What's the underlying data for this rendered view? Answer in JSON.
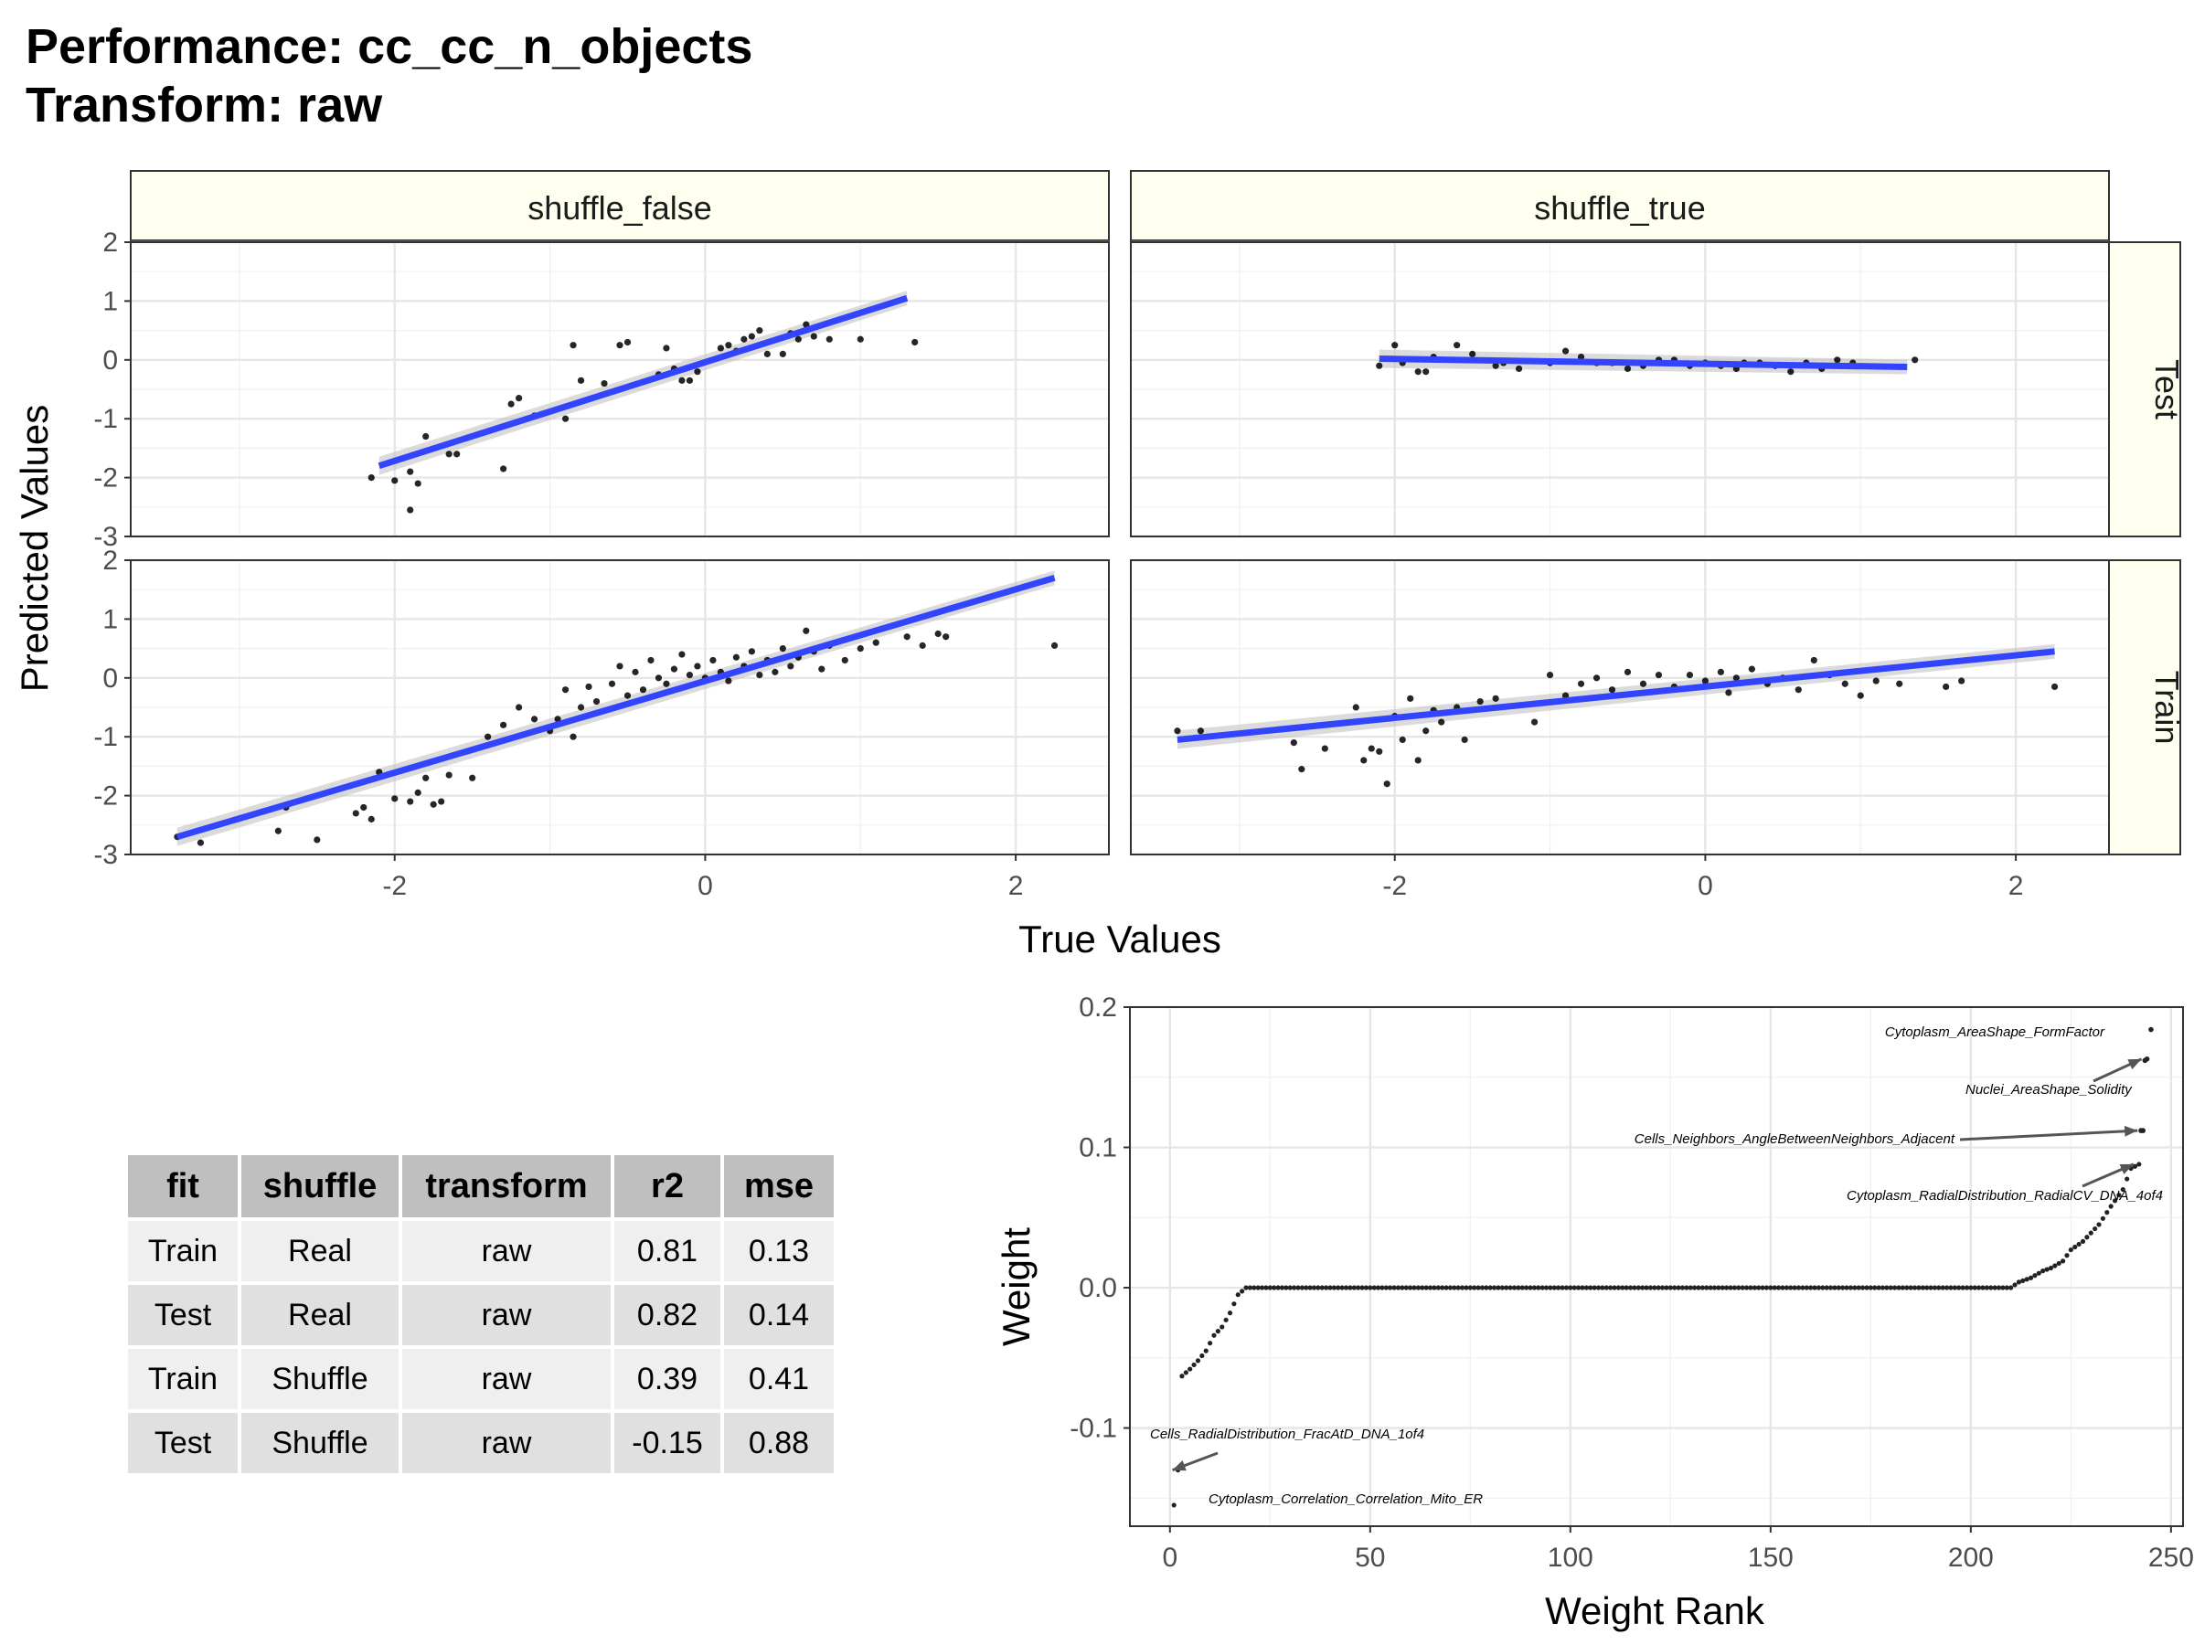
{
  "title": {
    "line1": "Performance: cc_cc_n_objects",
    "line2": "Transform: raw"
  },
  "scatter_axes": {
    "xlabel": "True Values",
    "ylabel": "Predicted Values",
    "x_ticks": [
      "-2",
      "0",
      "2"
    ],
    "y_ticks": [
      "-3",
      "-2",
      "-1",
      "0",
      "1",
      "2"
    ],
    "col_strips": [
      "shuffle_false",
      "shuffle_true"
    ],
    "row_strips": [
      "Test",
      "Train"
    ]
  },
  "weight_axes": {
    "xlabel": "Weight Rank",
    "ylabel": "Weight",
    "x_ticks": [
      "0",
      "50",
      "100",
      "150",
      "200",
      "250"
    ],
    "y_ticks": [
      "-0.1",
      "0.0",
      "0.1",
      "0.2"
    ]
  },
  "table": {
    "headers": [
      "fit",
      "shuffle",
      "transform",
      "r2",
      "mse"
    ],
    "rows": [
      [
        "Train",
        "Real",
        "raw",
        "0.81",
        "0.13"
      ],
      [
        "Test",
        "Real",
        "raw",
        "0.82",
        "0.14"
      ],
      [
        "Train",
        "Shuffle",
        "raw",
        "0.39",
        "0.41"
      ],
      [
        "Test",
        "Shuffle",
        "raw",
        "-0.15",
        "0.88"
      ]
    ]
  },
  "colors": {
    "fit_line": "#3344ff",
    "points": "#000000",
    "strip_fill": "#fffff0"
  },
  "chart_data": [
    {
      "type": "scatter",
      "panel": "shuffle_false / Test",
      "xlim": [
        -3.7,
        2.6
      ],
      "ylim": [
        -3,
        2
      ],
      "fit": {
        "x": [
          -2.1,
          1.3
        ],
        "y": [
          -1.8,
          1.05
        ]
      },
      "points": [
        [
          -2.15,
          -2.0
        ],
        [
          -2.0,
          -2.05
        ],
        [
          -1.9,
          -1.9
        ],
        [
          -1.9,
          -2.55
        ],
        [
          -1.85,
          -2.1
        ],
        [
          -1.8,
          -1.3
        ],
        [
          -1.65,
          -1.6
        ],
        [
          -1.6,
          -1.6
        ],
        [
          -1.3,
          -1.85
        ],
        [
          -1.25,
          -0.75
        ],
        [
          -1.2,
          -0.65
        ],
        [
          -1.1,
          -0.95
        ],
        [
          -0.9,
          -1.0
        ],
        [
          -0.85,
          0.25
        ],
        [
          -0.8,
          -0.35
        ],
        [
          -0.65,
          -0.4
        ],
        [
          -0.55,
          0.25
        ],
        [
          -0.5,
          0.3
        ],
        [
          -0.3,
          -0.25
        ],
        [
          -0.25,
          0.2
        ],
        [
          -0.2,
          -0.15
        ],
        [
          -0.15,
          -0.35
        ],
        [
          -0.1,
          -0.35
        ],
        [
          -0.05,
          -0.2
        ],
        [
          0.1,
          0.2
        ],
        [
          0.15,
          0.25
        ],
        [
          0.2,
          0.15
        ],
        [
          0.25,
          0.35
        ],
        [
          0.3,
          0.4
        ],
        [
          0.35,
          0.5
        ],
        [
          0.4,
          0.1
        ],
        [
          0.5,
          0.1
        ],
        [
          0.55,
          0.45
        ],
        [
          0.6,
          0.35
        ],
        [
          0.65,
          0.6
        ],
        [
          0.7,
          0.4
        ],
        [
          0.8,
          0.35
        ],
        [
          1.0,
          0.35
        ],
        [
          1.35,
          0.3
        ]
      ]
    },
    {
      "type": "scatter",
      "panel": "shuffle_true / Test",
      "xlim": [
        -3.7,
        2.6
      ],
      "ylim": [
        -3,
        2
      ],
      "fit": {
        "x": [
          -2.1,
          1.3
        ],
        "y": [
          0.02,
          -0.12
        ]
      },
      "points": [
        [
          -2.1,
          -0.1
        ],
        [
          -2.0,
          0.25
        ],
        [
          -1.95,
          -0.05
        ],
        [
          -1.85,
          -0.2
        ],
        [
          -1.8,
          -0.2
        ],
        [
          -1.75,
          0.05
        ],
        [
          -1.6,
          0.25
        ],
        [
          -1.5,
          0.1
        ],
        [
          -1.35,
          -0.1
        ],
        [
          -1.3,
          -0.05
        ],
        [
          -1.2,
          -0.15
        ],
        [
          -1.0,
          -0.05
        ],
        [
          -0.9,
          0.15
        ],
        [
          -0.8,
          0.05
        ],
        [
          -0.7,
          -0.05
        ],
        [
          -0.6,
          -0.05
        ],
        [
          -0.5,
          -0.15
        ],
        [
          -0.4,
          -0.1
        ],
        [
          -0.3,
          0.0
        ],
        [
          -0.2,
          0.0
        ],
        [
          -0.1,
          -0.1
        ],
        [
          0.0,
          -0.05
        ],
        [
          0.1,
          -0.1
        ],
        [
          0.2,
          -0.15
        ],
        [
          0.25,
          -0.05
        ],
        [
          0.35,
          -0.05
        ],
        [
          0.45,
          -0.1
        ],
        [
          0.55,
          -0.2
        ],
        [
          0.65,
          -0.05
        ],
        [
          0.75,
          -0.15
        ],
        [
          0.85,
          0.0
        ],
        [
          0.95,
          -0.05
        ],
        [
          1.35,
          0.0
        ]
      ]
    },
    {
      "type": "scatter",
      "panel": "shuffle_false / Train",
      "xlim": [
        -3.7,
        2.6
      ],
      "ylim": [
        -3,
        2
      ],
      "fit": {
        "x": [
          -3.4,
          2.25
        ],
        "y": [
          -2.7,
          1.7
        ]
      },
      "points": [
        [
          -3.4,
          -2.7
        ],
        [
          -3.25,
          -2.8
        ],
        [
          -2.75,
          -2.6
        ],
        [
          -2.7,
          -2.2
        ],
        [
          -2.5,
          -2.75
        ],
        [
          -2.25,
          -2.3
        ],
        [
          -2.2,
          -2.2
        ],
        [
          -2.15,
          -2.4
        ],
        [
          -2.1,
          -1.6
        ],
        [
          -2.0,
          -2.05
        ],
        [
          -1.9,
          -2.1
        ],
        [
          -1.85,
          -1.95
        ],
        [
          -1.8,
          -1.7
        ],
        [
          -1.75,
          -2.15
        ],
        [
          -1.7,
          -2.1
        ],
        [
          -1.65,
          -1.65
        ],
        [
          -1.5,
          -1.7
        ],
        [
          -1.4,
          -1.0
        ],
        [
          -1.3,
          -0.8
        ],
        [
          -1.2,
          -0.5
        ],
        [
          -1.1,
          -0.7
        ],
        [
          -1.0,
          -0.9
        ],
        [
          -0.95,
          -0.7
        ],
        [
          -0.9,
          -0.2
        ],
        [
          -0.85,
          -1.0
        ],
        [
          -0.8,
          -0.5
        ],
        [
          -0.75,
          -0.15
        ],
        [
          -0.7,
          -0.4
        ],
        [
          -0.6,
          -0.1
        ],
        [
          -0.55,
          0.2
        ],
        [
          -0.5,
          -0.3
        ],
        [
          -0.45,
          0.1
        ],
        [
          -0.4,
          -0.2
        ],
        [
          -0.35,
          0.3
        ],
        [
          -0.3,
          0.0
        ],
        [
          -0.25,
          -0.1
        ],
        [
          -0.2,
          0.15
        ],
        [
          -0.15,
          0.4
        ],
        [
          -0.1,
          0.05
        ],
        [
          -0.05,
          0.2
        ],
        [
          0.0,
          0.0
        ],
        [
          0.05,
          0.3
        ],
        [
          0.1,
          0.1
        ],
        [
          0.15,
          -0.05
        ],
        [
          0.2,
          0.35
        ],
        [
          0.25,
          0.2
        ],
        [
          0.3,
          0.45
        ],
        [
          0.35,
          0.05
        ],
        [
          0.4,
          0.3
        ],
        [
          0.45,
          0.1
        ],
        [
          0.5,
          0.5
        ],
        [
          0.55,
          0.2
        ],
        [
          0.6,
          0.35
        ],
        [
          0.65,
          0.8
        ],
        [
          0.7,
          0.45
        ],
        [
          0.75,
          0.15
        ],
        [
          0.8,
          0.55
        ],
        [
          0.9,
          0.3
        ],
        [
          1.0,
          0.5
        ],
        [
          1.1,
          0.6
        ],
        [
          1.3,
          0.7
        ],
        [
          1.4,
          0.55
        ],
        [
          1.5,
          0.75
        ],
        [
          1.55,
          0.7
        ],
        [
          2.25,
          0.55
        ]
      ]
    },
    {
      "type": "scatter",
      "panel": "shuffle_true / Train",
      "xlim": [
        -3.7,
        2.6
      ],
      "ylim": [
        -3,
        2
      ],
      "fit": {
        "x": [
          -3.4,
          2.25
        ],
        "y": [
          -1.05,
          0.45
        ]
      },
      "points": [
        [
          -3.4,
          -0.9
        ],
        [
          -3.25,
          -0.9
        ],
        [
          -2.65,
          -1.1
        ],
        [
          -2.6,
          -1.55
        ],
        [
          -2.45,
          -1.2
        ],
        [
          -2.25,
          -0.5
        ],
        [
          -2.2,
          -1.4
        ],
        [
          -2.15,
          -1.2
        ],
        [
          -2.1,
          -1.25
        ],
        [
          -2.05,
          -1.8
        ],
        [
          -2.0,
          -0.65
        ],
        [
          -1.95,
          -1.05
        ],
        [
          -1.9,
          -0.35
        ],
        [
          -1.85,
          -1.4
        ],
        [
          -1.8,
          -0.9
        ],
        [
          -1.75,
          -0.55
        ],
        [
          -1.7,
          -0.75
        ],
        [
          -1.6,
          -0.5
        ],
        [
          -1.55,
          -1.05
        ],
        [
          -1.45,
          -0.4
        ],
        [
          -1.35,
          -0.35
        ],
        [
          -1.1,
          -0.75
        ],
        [
          -1.0,
          0.05
        ],
        [
          -0.9,
          -0.3
        ],
        [
          -0.8,
          -0.1
        ],
        [
          -0.7,
          0.0
        ],
        [
          -0.6,
          -0.2
        ],
        [
          -0.5,
          0.1
        ],
        [
          -0.4,
          -0.1
        ],
        [
          -0.3,
          0.05
        ],
        [
          -0.2,
          -0.15
        ],
        [
          -0.1,
          0.05
        ],
        [
          0.0,
          -0.05
        ],
        [
          0.1,
          0.1
        ],
        [
          0.15,
          -0.25
        ],
        [
          0.2,
          0.0
        ],
        [
          0.3,
          0.15
        ],
        [
          0.4,
          -0.1
        ],
        [
          0.5,
          0.0
        ],
        [
          0.6,
          -0.2
        ],
        [
          0.7,
          0.3
        ],
        [
          0.8,
          0.05
        ],
        [
          0.9,
          -0.1
        ],
        [
          1.0,
          -0.3
        ],
        [
          1.1,
          -0.05
        ],
        [
          1.25,
          -0.1
        ],
        [
          1.55,
          -0.15
        ],
        [
          1.65,
          -0.05
        ],
        [
          2.25,
          -0.15
        ]
      ]
    },
    {
      "type": "scatter",
      "panel": "Weight vs Weight Rank",
      "xlabel": "Weight Rank",
      "ylabel": "Weight",
      "xlim": [
        -10,
        253
      ],
      "ylim": [
        -0.17,
        0.2
      ],
      "series_piecewise": [
        [
          1,
          -0.155
        ],
        [
          2,
          -0.13
        ],
        [
          3,
          -0.063
        ],
        [
          5,
          -0.058
        ],
        [
          7,
          -0.052
        ],
        [
          9,
          -0.045
        ],
        [
          11,
          -0.034
        ],
        [
          13,
          -0.028
        ],
        [
          15,
          -0.018
        ],
        [
          17,
          -0.005
        ],
        [
          19,
          0.0
        ],
        [
          210,
          0.0
        ],
        [
          212,
          0.004
        ],
        [
          215,
          0.007
        ],
        [
          218,
          0.012
        ],
        [
          220,
          0.014
        ],
        [
          223,
          0.019
        ],
        [
          225,
          0.027
        ],
        [
          228,
          0.033
        ],
        [
          232,
          0.045
        ],
        [
          235,
          0.058
        ],
        [
          238,
          0.07
        ],
        [
          240,
          0.085
        ],
        [
          242,
          0.088
        ],
        [
          242.5,
          0.112
        ],
        [
          243,
          0.112
        ],
        [
          243.5,
          0.162
        ],
        [
          244,
          0.163
        ],
        [
          245,
          0.184
        ]
      ],
      "annotations": [
        {
          "label": "Cytoplasm_AreaShape_FormFactor",
          "x": 245,
          "y": 0.184
        },
        {
          "label": "Nuclei_AreaShape_Solidity",
          "x": 244,
          "y": 0.163
        },
        {
          "label": "Cells_Neighbors_AngleBetweenNeighbors_Adjacent",
          "x": 243,
          "y": 0.112
        },
        {
          "label": "Cytoplasm_RadialDistribution_RadialCV_DNA_4of4",
          "x": 242,
          "y": 0.088
        },
        {
          "label": "Cells_RadialDistribution_FracAtD_DNA_1of4",
          "x": 2,
          "y": -0.13
        },
        {
          "label": "Cytoplasm_Correlation_Correlation_Mito_ER",
          "x": 1,
          "y": -0.155
        }
      ]
    }
  ]
}
